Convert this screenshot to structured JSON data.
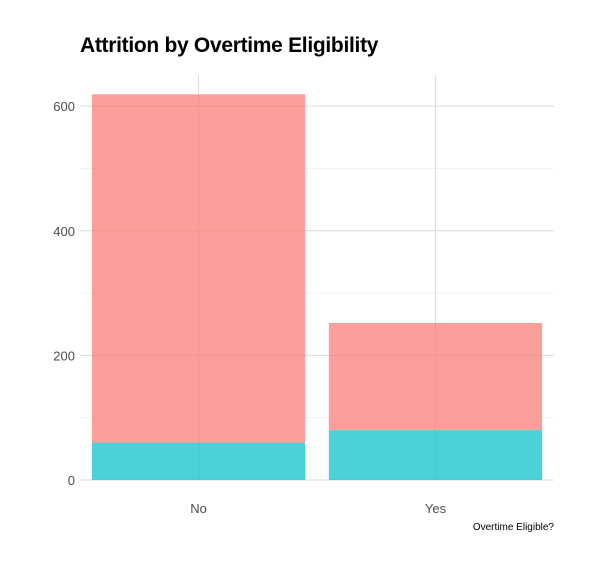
{
  "chart_data": {
    "type": "bar",
    "title": "Attrition by Overtime Eligibility",
    "xlabel": "Overtime Eligible?",
    "ylabel": "",
    "categories": [
      "No",
      "Yes"
    ],
    "stacked": true,
    "series": [
      {
        "values": [
          60,
          80
        ],
        "color": "#00BFC4"
      },
      {
        "values": [
          559,
          172
        ],
        "color": "#F8766D"
      }
    ],
    "yticks": [
      0,
      200,
      400,
      600
    ],
    "ylim": [
      0,
      650
    ],
    "grid": true,
    "legend": "none",
    "bar_opacity": 0.7
  }
}
